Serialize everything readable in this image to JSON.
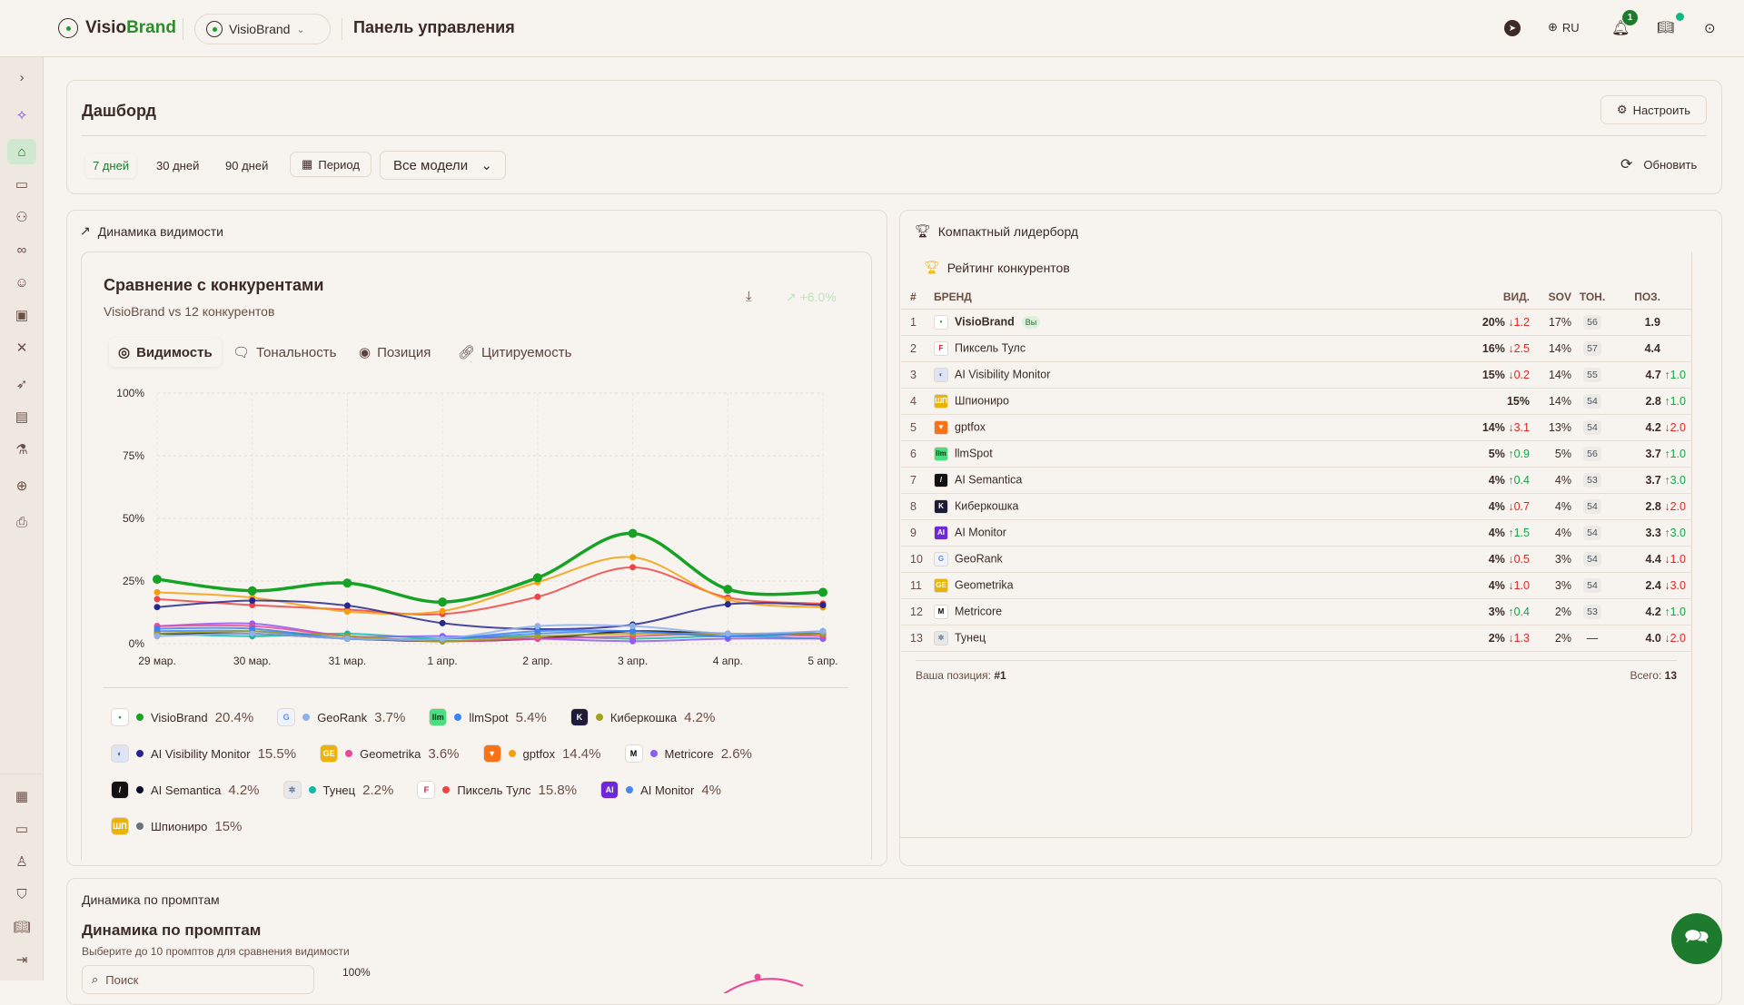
{
  "header": {
    "brand_a": "Visio",
    "brand_b": "Brand",
    "project": "VisioBrand",
    "page_title": "Панель управления",
    "lang": "RU",
    "notif_count": "1"
  },
  "sidebar": {
    "icons": [
      "chevron-right-icon",
      "sparkles-icon",
      "home-icon",
      "chat-icon",
      "users-icon",
      "link-icon",
      "smile-plus-icon",
      "inbox-icon",
      "swords-icon",
      "rocket-icon",
      "database-icon",
      "flask-icon",
      "globe-icon",
      "printer-icon"
    ],
    "bottom_icons": [
      "building-icon",
      "credit-card-icon",
      "user-icon",
      "shield-icon",
      "book-icon",
      "logout-icon"
    ]
  },
  "dashboard": {
    "title": "Дашборд",
    "configure": "Настроить",
    "ranges": [
      "7 дней",
      "30 дней",
      "90 дней"
    ],
    "period": "Период",
    "model_select": "Все модели",
    "refresh": "Обновить"
  },
  "visibility_panel": {
    "title": "Динамика видимости",
    "card_title": "Сравнение с конкурентами",
    "card_subtitle": "VisioBrand vs 12 конкурентов",
    "trend": "+6.0%",
    "tabs": [
      "Видимость",
      "Тональность",
      "Позиция",
      "Цитируемость"
    ]
  },
  "chart_data": {
    "type": "line",
    "categories": [
      "29 мар.",
      "30 мар.",
      "31 мар.",
      "1 апр.",
      "2 апр.",
      "3 апр.",
      "4 апр.",
      "5 апр."
    ],
    "y_ticks": [
      "0%",
      "25%",
      "50%",
      "75%",
      "100%"
    ],
    "ylim": [
      0,
      100
    ],
    "grid": true,
    "series": [
      {
        "name": "VisioBrand",
        "color": "#16a325",
        "avg": "20.4%",
        "values": [
          25.7,
          21.1,
          24.2,
          16.6,
          26.3,
          44,
          21.7,
          20.5
        ],
        "icon": {
          "bg": "#ffffff",
          "fg": "#16a325",
          "glyph": "•"
        }
      },
      {
        "name": "GeoRank",
        "color": "#8fb0e8",
        "avg": "3.7%",
        "values": [
          3,
          4,
          2,
          2,
          7,
          7,
          4,
          5
        ],
        "icon": {
          "bg": "#eef3ff",
          "fg": "#5b8def",
          "glyph": "G"
        }
      },
      {
        "name": "llmSpot",
        "color": "#3b82f6",
        "avg": "5.4%",
        "values": [
          6,
          6,
          2,
          2,
          5,
          5,
          3,
          5
        ],
        "icon": {
          "bg": "#4ade80",
          "fg": "#0b2e13",
          "glyph": "llm"
        }
      },
      {
        "name": "Киберкошка",
        "color": "#a3a01c",
        "avg": "4.2%",
        "values": [
          4,
          5,
          3,
          1,
          3,
          4,
          4,
          4
        ],
        "icon": {
          "bg": "#1e1b3a",
          "fg": "#ffffff",
          "glyph": "K"
        }
      },
      {
        "name": "AI Visibility Monitor",
        "color": "#27288f",
        "avg": "15.5%",
        "values": [
          14.6,
          17.2,
          15.2,
          8.2,
          5.8,
          7.6,
          15.7,
          15.4
        ],
        "icon": {
          "bg": "#dfe4f5",
          "fg": "#4b5fa8",
          "glyph": "◐"
        }
      },
      {
        "name": "Geometrika",
        "color": "#ec4899",
        "avg": "3.6%",
        "values": [
          7,
          7,
          3,
          1,
          2,
          3,
          4,
          3
        ],
        "icon": {
          "bg": "#eab308",
          "fg": "#ffffff",
          "glyph": "GE"
        }
      },
      {
        "name": "gptfox",
        "color": "#f59e0b",
        "avg": "14.4%",
        "values": [
          20.5,
          18.4,
          12.8,
          13,
          24.5,
          34.5,
          17.6,
          14.5
        ],
        "icon": {
          "bg": "#f97316",
          "fg": "#ffffff",
          "glyph": "▼"
        }
      },
      {
        "name": "Metricore",
        "color": "#8b5cf6",
        "avg": "2.6%",
        "values": [
          7,
          8,
          3,
          3,
          2,
          1,
          2,
          2
        ],
        "icon": {
          "bg": "#ffffff",
          "fg": "#000000",
          "glyph": "M"
        }
      },
      {
        "name": "AI Semantica",
        "color": "#0b0b2a",
        "avg": "4.2%",
        "values": [
          4,
          4,
          2,
          1,
          2,
          5,
          4,
          4
        ],
        "icon": {
          "bg": "#111111",
          "fg": "#ffffff",
          "glyph": "/"
        }
      },
      {
        "name": "Тунец",
        "color": "#14b8a6",
        "avg": "2.2%",
        "values": [
          4,
          3,
          4,
          2,
          3,
          2,
          3,
          2
        ],
        "icon": {
          "bg": "#e5e7eb",
          "fg": "#64748b",
          "glyph": "✲"
        }
      },
      {
        "name": "Пиксель Тулс",
        "color": "#ef4444",
        "avg": "15.8%",
        "values": [
          17.8,
          15.4,
          13.6,
          11.8,
          18.7,
          30.5,
          18.4,
          16
        ],
        "icon": {
          "bg": "#ffffff",
          "fg": "#e11d2e",
          "glyph": "F"
        }
      },
      {
        "name": "AI Monitor",
        "color": "#4a86f0",
        "avg": "4%",
        "values": [
          5,
          5,
          2,
          2,
          4,
          5,
          3,
          4
        ],
        "icon": {
          "bg": "#6d28d9",
          "fg": "#ffffff",
          "glyph": "AI"
        }
      },
      {
        "name": "Шпиониро",
        "color": "#6b7280",
        "avg": "15%",
        "values": [
          null,
          null,
          null,
          null,
          null,
          null,
          null,
          15
        ],
        "icon": {
          "bg": "#eab308",
          "fg": "#ffffff",
          "glyph": "ШП"
        }
      }
    ]
  },
  "leaderboard": {
    "panel_title": "Компактный лидерборд",
    "title": "Рейтинг конкурентов",
    "columns": [
      "#",
      "БРЕНД",
      "ВИД.",
      "SOV",
      "ТОН.",
      "ПОЗ."
    ],
    "you_badge": "Вы",
    "rows": [
      {
        "rank": "1",
        "brand": "VisioBrand",
        "vis": "20%",
        "vis_delta": "↓1.2",
        "sov": "17%",
        "ton": "56",
        "pos": "1.9",
        "pos_delta": ""
      },
      {
        "rank": "2",
        "brand": "Пиксель Тулс",
        "vis": "16%",
        "vis_delta": "↓2.5",
        "sov": "14%",
        "ton": "57",
        "pos": "4.4",
        "pos_delta": ""
      },
      {
        "rank": "3",
        "brand": "AI Visibility Monitor",
        "vis": "15%",
        "vis_delta": "↓0.2",
        "sov": "14%",
        "ton": "55",
        "pos": "4.7",
        "pos_delta": "↑1.0"
      },
      {
        "rank": "4",
        "brand": "Шпиониро",
        "vis": "15%",
        "vis_delta": "",
        "sov": "14%",
        "ton": "54",
        "pos": "2.8",
        "pos_delta": "↑1.0"
      },
      {
        "rank": "5",
        "brand": "gptfox",
        "vis": "14%",
        "vis_delta": "↓3.1",
        "sov": "13%",
        "ton": "54",
        "pos": "4.2",
        "pos_delta": "↓2.0"
      },
      {
        "rank": "6",
        "brand": "llmSpot",
        "vis": "5%",
        "vis_delta": "↑0.9",
        "sov": "5%",
        "ton": "56",
        "pos": "3.7",
        "pos_delta": "↑1.0"
      },
      {
        "rank": "7",
        "brand": "AI Semantica",
        "vis": "4%",
        "vis_delta": "↑0.4",
        "sov": "4%",
        "ton": "53",
        "pos": "3.7",
        "pos_delta": "↑3.0"
      },
      {
        "rank": "8",
        "brand": "Киберкошка",
        "vis": "4%",
        "vis_delta": "↓0.7",
        "sov": "4%",
        "ton": "54",
        "pos": "2.8",
        "pos_delta": "↓2.0"
      },
      {
        "rank": "9",
        "brand": "AI Monitor",
        "vis": "4%",
        "vis_delta": "↑1.5",
        "sov": "4%",
        "ton": "54",
        "pos": "3.3",
        "pos_delta": "↑3.0"
      },
      {
        "rank": "10",
        "brand": "GeoRank",
        "vis": "4%",
        "vis_delta": "↓0.5",
        "sov": "3%",
        "ton": "54",
        "pos": "4.4",
        "pos_delta": "↓1.0"
      },
      {
        "rank": "11",
        "brand": "Geometrika",
        "vis": "4%",
        "vis_delta": "↓1.0",
        "sov": "3%",
        "ton": "54",
        "pos": "2.4",
        "pos_delta": "↓3.0"
      },
      {
        "rank": "12",
        "brand": "Metricore",
        "vis": "3%",
        "vis_delta": "↑0.4",
        "sov": "2%",
        "ton": "53",
        "pos": "4.2",
        "pos_delta": "↑1.0"
      },
      {
        "rank": "13",
        "brand": "Тунец",
        "vis": "2%",
        "vis_delta": "↓1.3",
        "sov": "2%",
        "ton": "—",
        "pos": "4.0",
        "pos_delta": "↓2.0"
      }
    ],
    "footer_label": "Ваша позиция:",
    "footer_value": "#1",
    "total_label": "Всего:",
    "total_value": "13"
  },
  "prompts": {
    "panel_title": "Динамика по промптам",
    "title": "Динамика по промптам",
    "subtitle": "Выберите до 10 промптов для сравнения видимости",
    "search_placeholder": "Поиск",
    "y_top": "100%"
  }
}
